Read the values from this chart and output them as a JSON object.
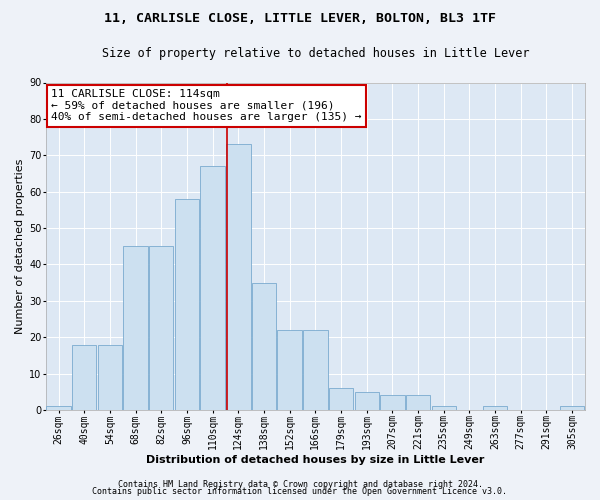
{
  "title1": "11, CARLISLE CLOSE, LITTLE LEVER, BOLTON, BL3 1TF",
  "title2": "Size of property relative to detached houses in Little Lever",
  "xlabel": "Distribution of detached houses by size in Little Lever",
  "ylabel": "Number of detached properties",
  "bar_labels": [
    "26sqm",
    "40sqm",
    "54sqm",
    "68sqm",
    "82sqm",
    "96sqm",
    "110sqm",
    "124sqm",
    "138sqm",
    "152sqm",
    "166sqm",
    "179sqm",
    "193sqm",
    "207sqm",
    "221sqm",
    "235sqm",
    "249sqm",
    "263sqm",
    "277sqm",
    "291sqm",
    "305sqm"
  ],
  "bar_values": [
    1,
    18,
    18,
    45,
    45,
    58,
    67,
    73,
    35,
    22,
    22,
    6,
    5,
    4,
    4,
    1,
    0,
    1,
    0,
    0,
    1
  ],
  "bar_color": "#cce0f0",
  "bar_edgecolor": "#7aaacf",
  "vline_x_index": 6.57,
  "annotation_line1": "11 CARLISLE CLOSE: 114sqm",
  "annotation_line2": "← 59% of detached houses are smaller (196)",
  "annotation_line3": "40% of semi-detached houses are larger (135) →",
  "annotation_box_color": "#ffffff",
  "annotation_box_edgecolor": "#cc0000",
  "vline_color": "#cc0000",
  "ylim": [
    0,
    90
  ],
  "yticks": [
    0,
    10,
    20,
    30,
    40,
    50,
    60,
    70,
    80,
    90
  ],
  "footer1": "Contains HM Land Registry data © Crown copyright and database right 2024.",
  "footer2": "Contains public sector information licensed under the Open Government Licence v3.0.",
  "bg_color": "#eef2f8",
  "plot_bg_color": "#dde8f4",
  "grid_color": "#ffffff",
  "title_fontsize": 9.5,
  "subtitle_fontsize": 8.5,
  "axis_label_fontsize": 8,
  "tick_fontsize": 7,
  "footer_fontsize": 6,
  "annot_fontsize": 8,
  "bar_width": 0.95
}
